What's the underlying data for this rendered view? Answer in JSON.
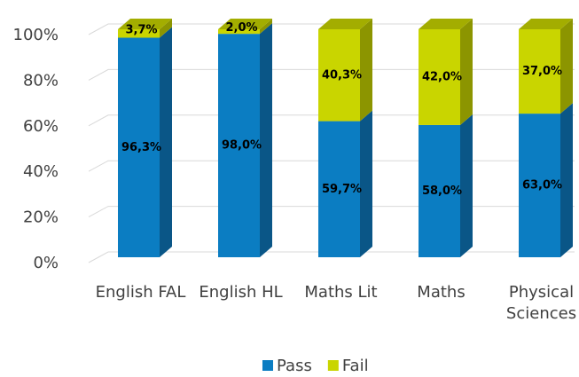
{
  "chart_data": {
    "type": "stacked-bar-3d",
    "categories": [
      "English FAL",
      "English HL",
      "Maths Lit",
      "Maths",
      "Physical Sciences"
    ],
    "series": [
      {
        "name": "Pass",
        "color": "#0b7dc2",
        "side": "#0a5687",
        "top": "#2a96d4",
        "values": [
          96.3,
          98.0,
          59.7,
          58.0,
          63.0
        ],
        "value_labels": [
          "96,3%",
          "98,0%",
          "59,7%",
          "58,0%",
          "63,0%"
        ]
      },
      {
        "name": "Fail",
        "color": "#c9d500",
        "side": "#8c9500",
        "top": "#a3ad00",
        "values": [
          3.7,
          2.0,
          40.3,
          42.0,
          37.0
        ],
        "value_labels": [
          "3,7%",
          "2,0%",
          "40,3%",
          "42,0%",
          "37,0%"
        ]
      }
    ],
    "ylim": [
      0,
      100
    ],
    "yticks": [
      {
        "value": 0,
        "label": "0%"
      },
      {
        "value": 20,
        "label": "20%"
      },
      {
        "value": 40,
        "label": "40%"
      },
      {
        "value": 60,
        "label": "60%"
      },
      {
        "value": 80,
        "label": "80%"
      },
      {
        "value": 100,
        "label": "100%"
      }
    ],
    "grid": true,
    "legend": "bottom"
  }
}
